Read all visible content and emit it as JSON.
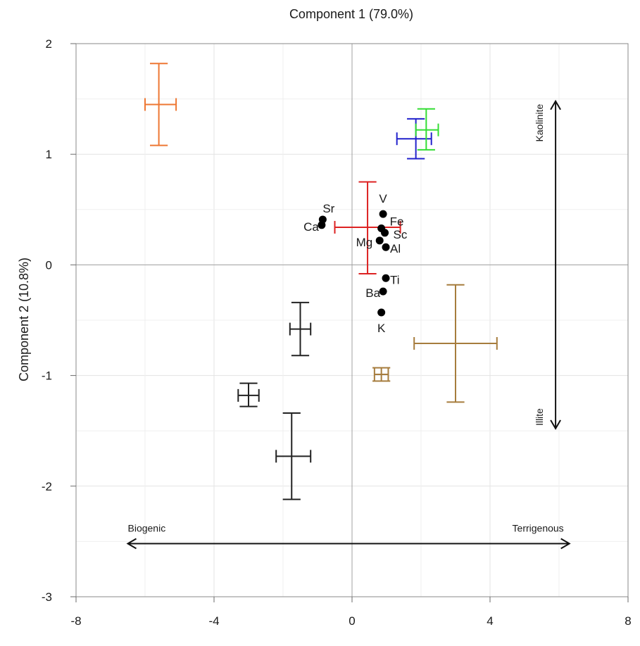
{
  "chart_data": {
    "type": "scatter",
    "title": "",
    "xlabel": "Component 1 (79.0%)",
    "ylabel": "Component 2 (10.8%)",
    "xlim": [
      -8,
      8
    ],
    "ylim": [
      -3,
      2
    ],
    "x_ticks": [
      "-8",
      "-4",
      "0",
      "4",
      "8"
    ],
    "y_ticks": [
      "2",
      "1",
      "0",
      "-1",
      "-2",
      "-3"
    ],
    "x_ticks_values": [
      -8,
      -4,
      0,
      4,
      8
    ],
    "y_ticks_values": [
      2,
      1,
      0,
      -1,
      -2,
      -3
    ],
    "grid": true,
    "reference_lines": {
      "x": 0,
      "y": 0
    },
    "loadings": [
      {
        "label": "V",
        "x": 0.9,
        "y": 0.46
      },
      {
        "label": "Fe",
        "x": 0.85,
        "y": 0.33
      },
      {
        "label": "Sc",
        "x": 0.95,
        "y": 0.29
      },
      {
        "label": "Al",
        "x": 0.98,
        "y": 0.16
      },
      {
        "label": "Mg",
        "x": 0.8,
        "y": 0.22
      },
      {
        "label": "Sr",
        "x": -0.85,
        "y": 0.41
      },
      {
        "label": "Ca",
        "x": -0.88,
        "y": 0.36
      },
      {
        "label": "Ti",
        "x": 0.98,
        "y": -0.12
      },
      {
        "label": "Ba",
        "x": 0.9,
        "y": -0.24
      },
      {
        "label": "K",
        "x": 0.85,
        "y": -0.43
      }
    ],
    "group_means": [
      {
        "x": -5.6,
        "y": 1.45,
        "x_lo": -6.0,
        "x_hi": -5.1,
        "y_lo": 1.08,
        "y_hi": 1.82,
        "color": "#ee7733"
      },
      {
        "x": 1.85,
        "y": 1.14,
        "x_lo": 1.3,
        "x_hi": 2.3,
        "y_lo": 0.96,
        "y_hi": 1.32,
        "color": "#2222cc"
      },
      {
        "x": 2.15,
        "y": 1.22,
        "x_lo": 1.85,
        "x_hi": 2.5,
        "y_lo": 1.04,
        "y_hi": 1.41,
        "color": "#33dd33"
      },
      {
        "x": 0.45,
        "y": 0.34,
        "x_lo": -0.5,
        "x_hi": 1.4,
        "y_lo": -0.08,
        "y_hi": 0.75,
        "color": "#dd2222"
      },
      {
        "x": -1.5,
        "y": -0.58,
        "x_lo": -1.8,
        "x_hi": -1.2,
        "y_lo": -0.82,
        "y_hi": -0.34,
        "color": "#222222"
      },
      {
        "x": -3.0,
        "y": -1.18,
        "x_lo": -3.3,
        "x_hi": -2.7,
        "y_lo": -1.28,
        "y_hi": -1.07,
        "color": "#222222"
      },
      {
        "x": -1.75,
        "y": -1.73,
        "x_lo": -2.2,
        "x_hi": -1.2,
        "y_lo": -2.12,
        "y_hi": -1.34,
        "color": "#222222"
      },
      {
        "x": 3.0,
        "y": -0.71,
        "x_lo": 1.8,
        "x_hi": 4.2,
        "y_lo": -1.24,
        "y_hi": -0.18,
        "color": "#a67c3d"
      },
      {
        "x": 0.85,
        "y": -0.99,
        "x_lo": 0.65,
        "x_hi": 1.05,
        "y_lo": -1.05,
        "y_hi": -0.93,
        "color": "#a67c3d"
      }
    ],
    "annotations": {
      "horizontal_arrow": {
        "x_from": -6.5,
        "x_to": 6.3,
        "y": -2.52,
        "left_label": "Biogenic",
        "right_label": "Terrigenous"
      },
      "vertical_arrow": {
        "x": 5.9,
        "y_from": -1.48,
        "y_to": 1.48,
        "top_label": "Kaolinite",
        "bottom_label": "Illite"
      }
    }
  }
}
